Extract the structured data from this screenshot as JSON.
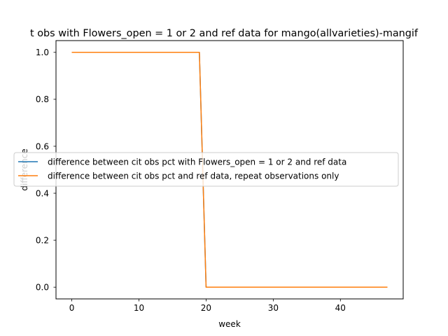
{
  "chart_data": {
    "type": "line",
    "title": "t obs with Flowers_open = 1 or 2 and ref data for mango(allvarieties)-mangif",
    "xlabel": "week",
    "ylabel": "difference",
    "xlim": [
      -2.35,
      49.35
    ],
    "ylim": [
      -0.05,
      1.05
    ],
    "xticks": [
      0,
      10,
      20,
      30,
      40
    ],
    "yticks": [
      0.0,
      0.2,
      0.4,
      0.6,
      0.8,
      1.0
    ],
    "xtick_labels": [
      "0",
      "10",
      "20",
      "30",
      "40"
    ],
    "ytick_labels": [
      "0.0",
      "0.2",
      "0.4",
      "0.6",
      "0.8",
      "1.0"
    ],
    "grid": false,
    "legend_position": "center-left",
    "series": [
      {
        "name": "difference between cit obs pct with Flowers_open = 1 or 2 and ref data",
        "color": "#1f77b4",
        "x": [
          0,
          19,
          20,
          47
        ],
        "y": [
          1.0,
          1.0,
          0.0,
          0.0
        ]
      },
      {
        "name": "difference between cit obs pct and ref data, repeat observations only",
        "color": "#ff7f0e",
        "x": [
          0,
          19,
          20,
          47
        ],
        "y": [
          1.0,
          1.0,
          0.0,
          0.0
        ]
      }
    ]
  }
}
